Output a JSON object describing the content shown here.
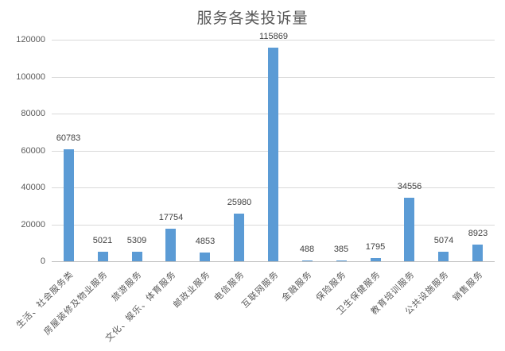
{
  "chart_data": {
    "type": "bar",
    "title": "服务各类投诉量",
    "xlabel": "",
    "ylabel": "",
    "ylim": [
      0,
      120000
    ],
    "yticks": [
      0,
      20000,
      40000,
      60000,
      80000,
      100000,
      120000
    ],
    "grid": true,
    "legend": "none",
    "bar_color": "#5b9bd5",
    "categories": [
      "生活、社会服务类",
      "房屋装修及物业服务",
      "旅游服务",
      "文化、娱乐、体育服务",
      "邮政业服务",
      "电信服务",
      "互联网服务",
      "金融服务",
      "保险服务",
      "卫生保健服务",
      "教育培训服务",
      "公共设施服务",
      "销售服务"
    ],
    "values": [
      60783,
      5021,
      5309,
      17754,
      4853,
      25980,
      115869,
      488,
      385,
      1795,
      34556,
      5074,
      8923
    ],
    "data_labels": [
      "60783",
      "5021",
      "5309",
      "17754",
      "4853",
      "25980",
      "115869",
      "488",
      "385",
      "1795",
      "34556",
      "5074",
      "8923"
    ],
    "ytick_labels": [
      "0",
      "20000",
      "40000",
      "60000",
      "80000",
      "100000",
      "120000"
    ]
  }
}
